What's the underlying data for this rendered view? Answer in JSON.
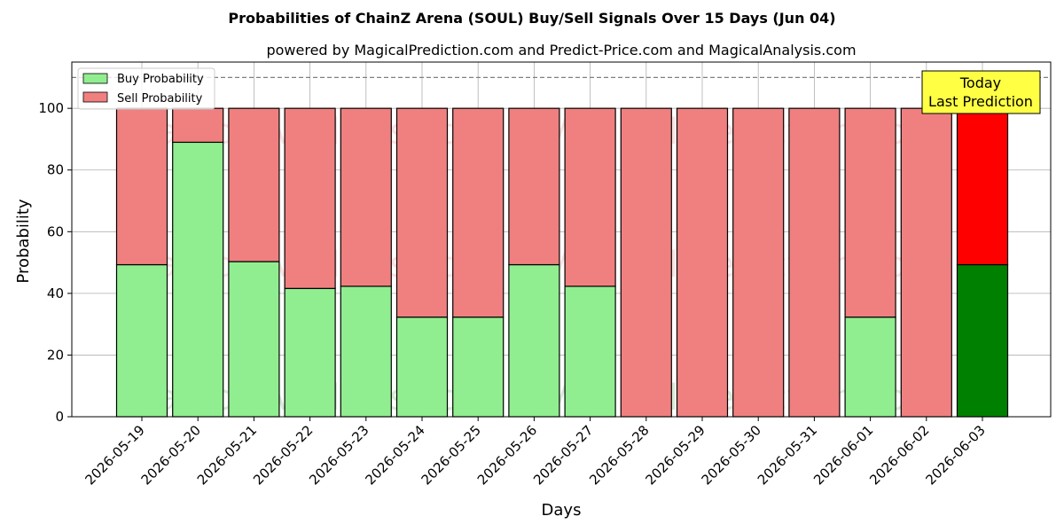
{
  "chart_data": {
    "type": "bar",
    "stacked": true,
    "title": "Probabilities of ChainZ Arena (SOUL) Buy/Sell Signals Over 15 Days (Jun 04)",
    "subtitle": "powered by MagicalPrediction.com and Predict-Price.com and MagicalAnalysis.com",
    "xlabel": "Days",
    "ylabel": "Probability",
    "ylim": [
      0,
      115
    ],
    "yticks": [
      0,
      20,
      40,
      60,
      80,
      100
    ],
    "grid": true,
    "legend_position": "top-left",
    "reference_line": 110,
    "categories": [
      "2026-05-19",
      "2026-05-20",
      "2026-05-21",
      "2026-05-22",
      "2026-05-23",
      "2026-05-24",
      "2026-05-25",
      "2026-05-26",
      "2026-05-27",
      "2026-05-28",
      "2026-05-29",
      "2026-05-30",
      "2026-05-31",
      "2026-06-01",
      "2026-06-02",
      "2026-06-03"
    ],
    "series": [
      {
        "name": "Buy Probability",
        "color": "#90ee90",
        "highlight_color": "#008000",
        "values": [
          49.3,
          89,
          50.3,
          41.6,
          42.3,
          32.3,
          32.3,
          49.3,
          42.3,
          0,
          0,
          0,
          0,
          32.3,
          0,
          49.3
        ]
      },
      {
        "name": "Sell Probability",
        "color": "#f08080",
        "highlight_color": "#ff0000",
        "values": [
          50.7,
          11,
          49.7,
          58.4,
          57.7,
          67.7,
          67.7,
          50.7,
          57.7,
          100,
          100,
          100,
          100,
          67.7,
          100,
          50.7
        ]
      }
    ],
    "annotation": {
      "lines": [
        "Today",
        "Last Prediction"
      ],
      "background": "#ffff44"
    },
    "watermarks": [
      "MagicalAnalysis.com",
      "MagicalPrediction.com"
    ]
  }
}
